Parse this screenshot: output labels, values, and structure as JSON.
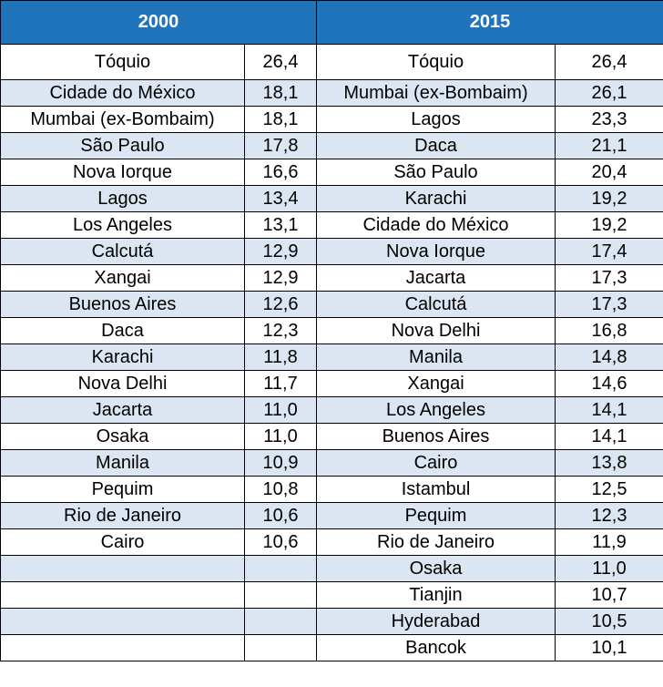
{
  "headers": {
    "year_a": "2000",
    "year_b": "2015"
  },
  "rows": [
    {
      "city_a": "Tóquio",
      "value_a": "26,4",
      "city_b": "Tóquio",
      "value_b": "26,4"
    },
    {
      "city_a": "Cidade do México",
      "value_a": "18,1",
      "city_b": "Mumbai (ex-Bombaim)",
      "value_b": "26,1"
    },
    {
      "city_a": "Mumbai (ex-Bombaim)",
      "value_a": "18,1",
      "city_b": "Lagos",
      "value_b": "23,3"
    },
    {
      "city_a": "São Paulo",
      "value_a": "17,8",
      "city_b": "Daca",
      "value_b": "21,1"
    },
    {
      "city_a": "Nova Iorque",
      "value_a": "16,6",
      "city_b": "São Paulo",
      "value_b": "20,4"
    },
    {
      "city_a": "Lagos",
      "value_a": "13,4",
      "city_b": "Karachi",
      "value_b": "19,2"
    },
    {
      "city_a": "Los Angeles",
      "value_a": "13,1",
      "city_b": "Cidade do México",
      "value_b": "19,2"
    },
    {
      "city_a": "Calcutá",
      "value_a": "12,9",
      "city_b": "Nova Iorque",
      "value_b": "17,4"
    },
    {
      "city_a": "Xangai",
      "value_a": "12,9",
      "city_b": "Jacarta",
      "value_b": "17,3"
    },
    {
      "city_a": "Buenos Aires",
      "value_a": "12,6",
      "city_b": "Calcutá",
      "value_b": "17,3"
    },
    {
      "city_a": "Daca",
      "value_a": "12,3",
      "city_b": "Nova Delhi",
      "value_b": "16,8"
    },
    {
      "city_a": "Karachi",
      "value_a": "11,8",
      "city_b": "Manila",
      "value_b": "14,8"
    },
    {
      "city_a": "Nova Delhi",
      "value_a": "11,7",
      "city_b": "Xangai",
      "value_b": "14,6"
    },
    {
      "city_a": "Jacarta",
      "value_a": "11,0",
      "city_b": "Los Angeles",
      "value_b": "14,1"
    },
    {
      "city_a": "Osaka",
      "value_a": "11,0",
      "city_b": "Buenos Aires",
      "value_b": "14,1"
    },
    {
      "city_a": "Manila",
      "value_a": "10,9",
      "city_b": "Cairo",
      "value_b": "13,8"
    },
    {
      "city_a": "Pequim",
      "value_a": "10,8",
      "city_b": "Istambul",
      "value_b": "12,5"
    },
    {
      "city_a": "Rio de Janeiro",
      "value_a": "10,6",
      "city_b": "Pequim",
      "value_b": "12,3"
    },
    {
      "city_a": "Cairo",
      "value_a": "10,6",
      "city_b": "Rio de Janeiro",
      "value_b": "11,9"
    },
    {
      "city_a": "",
      "value_a": "",
      "city_b": "Osaka",
      "value_b": "11,0"
    },
    {
      "city_a": "",
      "value_a": "",
      "city_b": "Tianjin",
      "value_b": "10,7"
    },
    {
      "city_a": "",
      "value_a": "",
      "city_b": "Hyderabad",
      "value_b": "10,5"
    },
    {
      "city_a": "",
      "value_a": "",
      "city_b": "Bancok",
      "value_b": "10,1"
    }
  ],
  "colors": {
    "header_bg": "#1f74bb",
    "header_text": "#ffffff",
    "shaded_row_bg": "#dce6f2",
    "plain_row_bg": "#ffffff",
    "border": "#000000"
  }
}
